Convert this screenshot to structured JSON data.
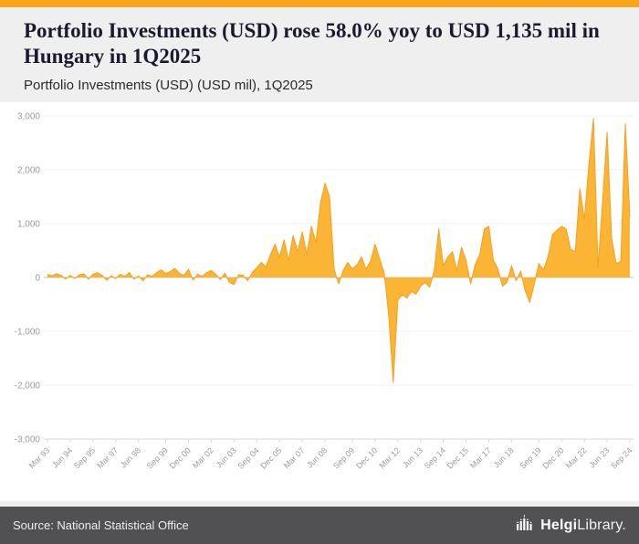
{
  "page": {
    "title": "Portfolio Investments (USD) rose 58.0% yoy to USD 1,135 mil in Hungary in 1Q2025",
    "subtitle": "Portfolio Investments (USD) (USD mil), 1Q2025"
  },
  "footer": {
    "source": "Source: National Statistical Office",
    "logo_bold": "Helgi",
    "logo_regular": "Library."
  },
  "colors": {
    "accent_topbar": "#F8A61C",
    "series_fill": "#FBB434",
    "series_stroke": "#F5A01C",
    "footer_bg": "#515154",
    "grid": "#F1F1F1",
    "zero_line": "#C6C6C6",
    "axis_label": "#9A9A9A",
    "bottom_axis": "#D9D9D9"
  },
  "chart_data": {
    "type": "area",
    "title": "Portfolio Investments (USD) (USD mil), 1Q2025",
    "unit": "USD mil",
    "country": "Hungary",
    "frequency": "quarterly",
    "x_start": "1993-Q1",
    "x_end": "2025-Q1",
    "ylim": [
      -3000,
      3000
    ],
    "y_ticks": [
      3000,
      2000,
      1000,
      0,
      -1000,
      -2000,
      -3000
    ],
    "y_tick_labels": [
      "3,000",
      "2,000",
      "1,000",
      "0",
      "-1,000",
      "-2,000",
      "-3,000"
    ],
    "x_tick_labels": [
      "Mar 93",
      "Jun 94",
      "Sep 95",
      "Mar 97",
      "Jun 98",
      "Sep 99",
      "Dec 00",
      "Mar 02",
      "Jun 03",
      "Sep 04",
      "Dec 05",
      "Mar 07",
      "Jun 08",
      "Sep 09",
      "Dec 10",
      "Mar 12",
      "Jun 13",
      "Sep 14",
      "Dec 15",
      "Mar 17",
      "Jun 18",
      "Sep 19",
      "Dec 20",
      "Mar 22",
      "Jun 23",
      "Sep 24"
    ],
    "values": [
      60,
      30,
      70,
      40,
      -30,
      40,
      -20,
      50,
      70,
      -30,
      60,
      90,
      40,
      -50,
      30,
      -20,
      60,
      20,
      90,
      -30,
      30,
      -60,
      50,
      20,
      90,
      140,
      70,
      110,
      170,
      80,
      40,
      150,
      -50,
      60,
      20,
      90,
      130,
      60,
      -40,
      80,
      -90,
      -130,
      50,
      40,
      -60,
      90,
      180,
      280,
      200,
      420,
      620,
      380,
      700,
      320,
      780,
      480,
      850,
      420,
      950,
      650,
      1380,
      1750,
      1500,
      150,
      -120,
      130,
      280,
      160,
      230,
      380,
      160,
      300,
      620,
      350,
      80,
      -700,
      -1950,
      -420,
      -320,
      -380,
      -260,
      -310,
      -160,
      -90,
      -180,
      120,
      900,
      220,
      380,
      480,
      120,
      560,
      320,
      -120,
      240,
      420,
      900,
      950,
      320,
      160,
      -160,
      -90,
      220,
      -60,
      120,
      -250,
      -460,
      -120,
      260,
      140,
      380,
      800,
      880,
      950,
      900,
      520,
      480,
      1650,
      1080,
      2100,
      2950,
      180,
      1400,
      2700,
      718,
      260,
      300,
      2850,
      1135
    ],
    "latest_value": 1135,
    "yoy_change_pct": 58.0
  }
}
